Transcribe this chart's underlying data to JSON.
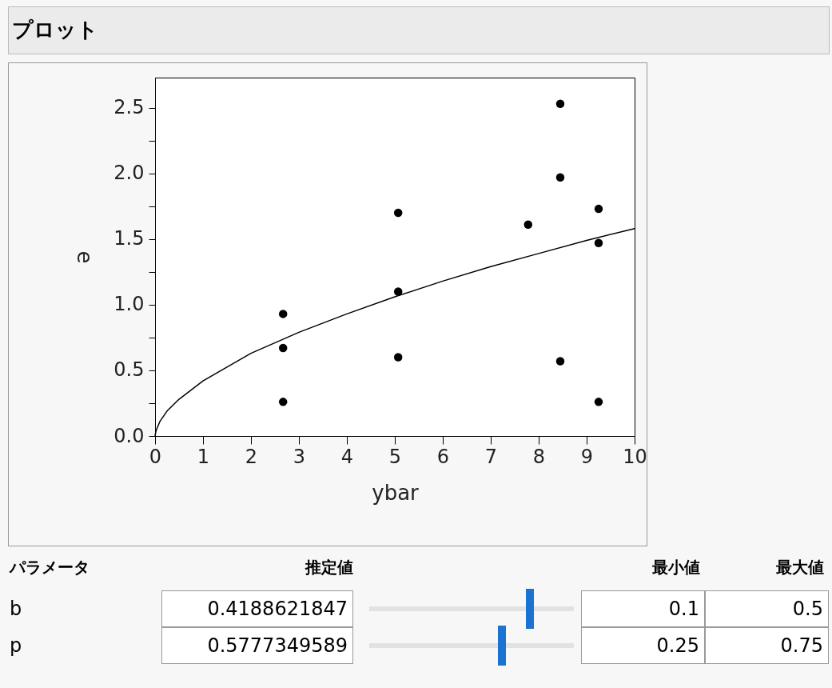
{
  "chart_data": {
    "type": "scatter",
    "title": "プロット",
    "xlabel": "ybar",
    "ylabel": "e",
    "x": [
      2.67,
      2.67,
      2.67,
      5.07,
      5.07,
      5.07,
      7.78,
      8.45,
      8.45,
      8.45,
      9.25,
      9.25,
      9.25
    ],
    "series": [
      {
        "marker": "circle",
        "color": "#000000",
        "values": [
          0.93,
          0.67,
          0.26,
          1.7,
          1.1,
          0.6,
          1.61,
          2.53,
          1.97,
          0.57,
          1.73,
          1.47,
          0.26
        ]
      },
      {
        "type": "line",
        "color": "#000000",
        "x": [
          0,
          0.02,
          0.1,
          0.25,
          0.5,
          1,
          2,
          3,
          4,
          5,
          6,
          7,
          8,
          9,
          10
        ],
        "values": [
          0,
          0.04,
          0.11,
          0.19,
          0.28,
          0.42,
          0.63,
          0.79,
          0.93,
          1.06,
          1.18,
          1.29,
          1.39,
          1.49,
          1.58
        ]
      }
    ],
    "grid": false,
    "xlim": [
      0,
      10
    ],
    "xticks": [
      0,
      1,
      2,
      3,
      4,
      5,
      6,
      7,
      8,
      9,
      10
    ],
    "ylim": [
      0,
      2.73
    ],
    "yticks": [
      {
        "value": 0,
        "label": "0.0"
      },
      {
        "value": 0.25,
        "label": null
      },
      {
        "value": 0.5,
        "label": "0.5"
      },
      {
        "value": 0.75,
        "label": null
      },
      {
        "value": 1,
        "label": "1.0"
      },
      {
        "value": 1.25,
        "label": null
      },
      {
        "value": 1.5,
        "label": "1.5"
      },
      {
        "value": 1.75,
        "label": null
      },
      {
        "value": 2,
        "label": "2.0"
      },
      {
        "value": 2.25,
        "label": null
      },
      {
        "value": 2.5,
        "label": "2.5"
      }
    ],
    "annotations": [
      "パラメータ",
      "推定値",
      "最小値",
      "最大値",
      "b",
      "0.4188621847",
      "0.1",
      "0.5",
      "p",
      "0.5777349589",
      "0.25",
      "0.75"
    ]
  }
}
